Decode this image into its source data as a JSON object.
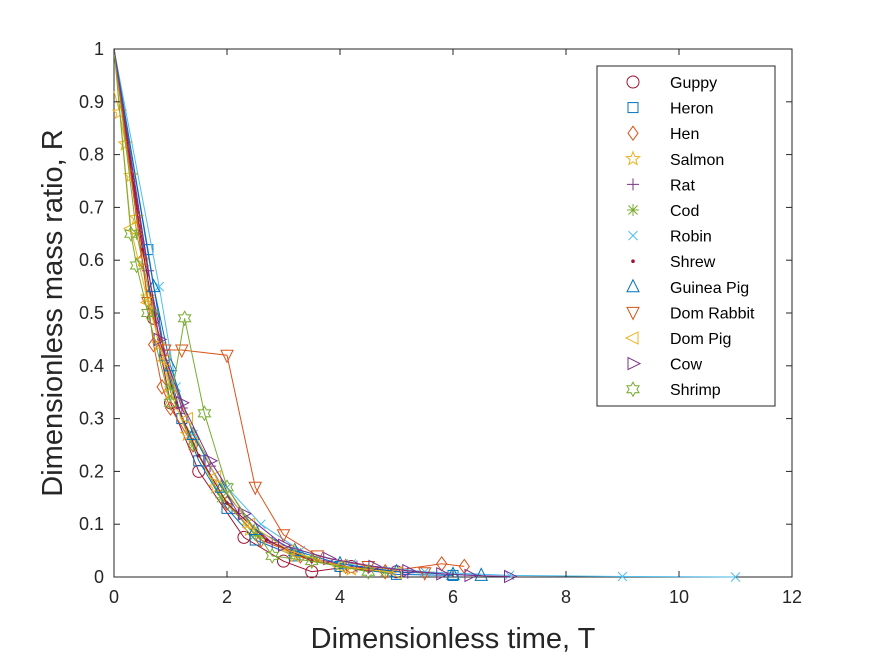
{
  "chart_data": {
    "type": "line",
    "xlabel": "Dimensionless time, T",
    "ylabel": "Dimensionless mass ratio, R",
    "xlim": [
      0,
      12
    ],
    "ylim": [
      0,
      1
    ],
    "x_ticks": [
      "0",
      "2",
      "4",
      "6",
      "8",
      "10",
      "12"
    ],
    "y_ticks": [
      "0",
      "0.1",
      "0.2",
      "0.3",
      "0.4",
      "0.5",
      "0.6",
      "0.7",
      "0.8",
      "0.9",
      "1"
    ],
    "grid": false,
    "legend_position": "top-right",
    "series": [
      {
        "name": "Guppy",
        "color": "#A2142F",
        "marker": "circle",
        "x": [
          0,
          0.7,
          1.0,
          1.5,
          2.3,
          3.0,
          3.5,
          4.2,
          5.0
        ],
        "y": [
          1,
          0.49,
          0.33,
          0.2,
          0.075,
          0.03,
          0.01,
          0.02,
          0.01
        ]
      },
      {
        "name": "Heron",
        "color": "#0072BD",
        "marker": "square",
        "x": [
          0,
          0.6,
          0.9,
          1.2,
          1.5,
          2.0,
          2.5,
          3.2,
          4.0,
          5.0,
          6.0
        ],
        "y": [
          1,
          0.62,
          0.42,
          0.3,
          0.22,
          0.13,
          0.07,
          0.04,
          0.02,
          0.005,
          0.003
        ]
      },
      {
        "name": "Hen",
        "color": "#D95319",
        "marker": "diamond",
        "x": [
          0,
          0.5,
          0.7,
          0.85,
          1.0,
          1.4,
          2.0,
          2.6,
          3.3,
          4.1,
          4.8,
          5.8,
          6.2
        ],
        "y": [
          1,
          0.6,
          0.44,
          0.36,
          0.32,
          0.25,
          0.14,
          0.07,
          0.04,
          0.02,
          0.01,
          0.025,
          0.02
        ]
      },
      {
        "name": "Salmon",
        "color": "#EDB120",
        "marker": "star",
        "x": [
          0,
          0.1,
          0.2,
          0.3,
          0.4,
          0.5,
          0.6,
          0.8,
          1.0,
          1.3,
          1.8,
          2.4,
          3.2,
          4.2
        ],
        "y": [
          0.92,
          0.88,
          0.82,
          0.76,
          0.68,
          0.6,
          0.53,
          0.44,
          0.35,
          0.27,
          0.17,
          0.09,
          0.04,
          0.015
        ]
      },
      {
        "name": "Rat",
        "color": "#7E2F8E",
        "marker": "plus",
        "x": [
          0,
          0.6,
          0.9,
          1.2,
          1.7,
          2.2,
          2.8,
          3.5,
          4.3,
          5.2
        ],
        "y": [
          1,
          0.58,
          0.42,
          0.32,
          0.21,
          0.12,
          0.065,
          0.035,
          0.02,
          0.008
        ]
      },
      {
        "name": "Cod",
        "color": "#77AC30",
        "marker": "asterisk",
        "x": [
          0,
          0.4,
          0.7,
          1.0,
          1.4,
          1.9,
          2.5,
          3.2,
          4.0,
          4.8
        ],
        "y": [
          1,
          0.65,
          0.5,
          0.36,
          0.25,
          0.15,
          0.08,
          0.045,
          0.02,
          0.01
        ]
      },
      {
        "name": "Robin",
        "color": "#4DBEEE",
        "marker": "x",
        "x": [
          0,
          0.8,
          1.1,
          1.4,
          2.0,
          2.6,
          3.3,
          4.2,
          5.5,
          7.0,
          9.0,
          11.0
        ],
        "y": [
          1,
          0.55,
          0.36,
          0.27,
          0.17,
          0.1,
          0.05,
          0.025,
          0.01,
          0.003,
          0.001,
          0.0
        ]
      },
      {
        "name": "Shrew",
        "color": "#A2142F",
        "marker": "point",
        "x": [
          0,
          0.5,
          0.8,
          1.1,
          1.5,
          2.0,
          2.7,
          3.5,
          4.5
        ],
        "y": [
          1,
          0.62,
          0.45,
          0.33,
          0.23,
          0.14,
          0.07,
          0.03,
          0.012
        ]
      },
      {
        "name": "Guinea Pig",
        "color": "#0072BD",
        "marker": "triangle-up",
        "x": [
          0,
          0.7,
          1.0,
          1.4,
          1.9,
          2.5,
          3.2,
          4.0,
          5.0,
          6.0,
          6.5
        ],
        "y": [
          1,
          0.55,
          0.4,
          0.27,
          0.17,
          0.09,
          0.05,
          0.025,
          0.01,
          0.005,
          0.003
        ]
      },
      {
        "name": "Dom Rabbit",
        "color": "#D95319",
        "marker": "triangle-down",
        "x": [
          0,
          0.6,
          0.9,
          1.2,
          2.0,
          2.5,
          3.0,
          3.6,
          4.5,
          5.5
        ],
        "y": [
          1,
          0.52,
          0.43,
          0.43,
          0.42,
          0.17,
          0.08,
          0.04,
          0.02,
          0.008
        ]
      },
      {
        "name": "Dom Pig",
        "color": "#EDB120",
        "marker": "triangle-left",
        "x": [
          0,
          0.3,
          0.6,
          0.9,
          1.3,
          1.8,
          2.4,
          3.1,
          4.0,
          5.0
        ],
        "y": [
          1,
          0.66,
          0.52,
          0.41,
          0.3,
          0.19,
          0.1,
          0.05,
          0.02,
          0.008
        ]
      },
      {
        "name": "Cow",
        "color": "#7E2F8E",
        "marker": "triangle-right",
        "x": [
          0,
          0.8,
          1.2,
          1.7,
          2.3,
          3.0,
          3.8,
          4.6,
          5.2,
          5.8,
          6.3,
          7.0
        ],
        "y": [
          1,
          0.45,
          0.33,
          0.22,
          0.12,
          0.06,
          0.035,
          0.02,
          0.012,
          0.006,
          0.003,
          0.001
        ]
      },
      {
        "name": "Shrimp",
        "color": "#77AC30",
        "marker": "hexagram",
        "x": [
          0,
          0.3,
          0.4,
          0.6,
          1.0,
          1.25,
          1.6,
          2.0,
          2.8,
          3.5,
          4.5
        ],
        "y": [
          1,
          0.65,
          0.59,
          0.5,
          0.33,
          0.49,
          0.31,
          0.17,
          0.04,
          0.03,
          0.01
        ]
      }
    ]
  }
}
